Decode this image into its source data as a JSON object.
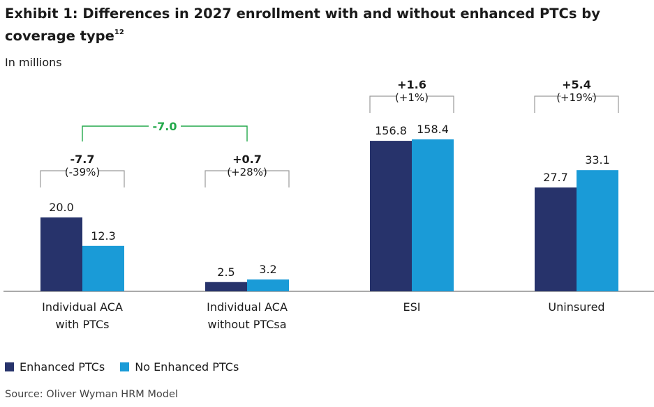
{
  "title": "Exhibit 1: Differences in 2027 enrollment with and without enhanced PTCs by coverage type",
  "title_superscript": "12",
  "subtitle": "In millions",
  "source": "Source: Oliver Wyman HRM Model",
  "colors": {
    "enhanced": "#27336b",
    "no_enhanced": "#1a9bd7",
    "combined_bracket": "#22a84a",
    "bracket": "#9a9a9a"
  },
  "chart_data": {
    "type": "bar",
    "categories": [
      "Individual ACA\nwith PTCs",
      "Individual ACA\nwithout PTCsa",
      "ESI",
      "Uninsured"
    ],
    "series": [
      {
        "name": "Enhanced PTCs",
        "values": [
          20.0,
          2.5,
          156.8,
          27.7
        ],
        "labels": [
          "20.0",
          "2.5",
          "156.8",
          "27.7"
        ]
      },
      {
        "name": "No Enhanced PTCs",
        "values": [
          12.3,
          3.2,
          158.4,
          33.1
        ],
        "labels": [
          "12.3",
          "3.2",
          "158.4",
          "33.1"
        ]
      }
    ],
    "differences": [
      {
        "change": "-7.7",
        "pct": "(-39%)"
      },
      {
        "change": "+0.7",
        "pct": "(+28%)"
      },
      {
        "change": "+1.6",
        "pct": "(+1%)"
      },
      {
        "change": "+5.4",
        "pct": "(+19%)"
      }
    ],
    "combined_change": "-7.0",
    "axis_note": "broken scale: bars for ESI and Uninsured not drawn to the same scale as Individual ACA",
    "legend": "bottom-left"
  }
}
